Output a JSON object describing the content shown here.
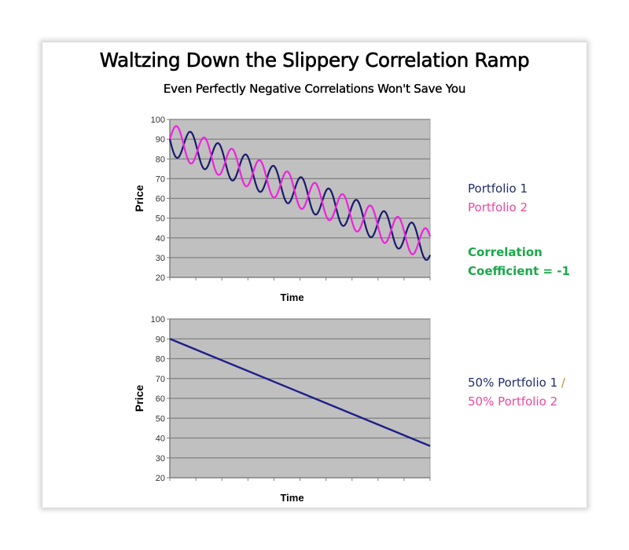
{
  "header": {
    "title": "Waltzing Down the Slippery Correlation Ramp",
    "subtitle": "Even Perfectly Negative Correlations Won't Save You"
  },
  "legends": {
    "top": {
      "series1": "Portfolio 1",
      "series2": "Portfolio 2",
      "note_line1": "Correlation",
      "note_line2": "Coefficient = -1"
    },
    "bottom": {
      "line1": "50% Portfolio 1",
      "separator": "/",
      "line2": "50% Portfolio 2"
    }
  },
  "colors": {
    "portfolio1": "#1a1a6e",
    "portfolio2": "#ee22dd",
    "combined": "#1e1e8a",
    "plot_bg": "#c0c0c0",
    "gridline": "#808080",
    "legend_navy": "#1f2d6b",
    "legend_pink": "#f0469c",
    "legend_green": "#1aa84a"
  },
  "chart_data": [
    {
      "type": "line",
      "title": "",
      "xlabel": "Time",
      "ylabel": "Price",
      "ylim": [
        20,
        100
      ],
      "yticks": [
        "20",
        "30",
        "40",
        "50",
        "60",
        "70",
        "80",
        "90",
        "100"
      ],
      "x_tick_count": 10,
      "grid": true,
      "legend": "right",
      "x_range": [
        0,
        1
      ],
      "series": [
        {
          "name": "Portfolio 1",
          "kind": "sine-on-trend",
          "trend_start": 90,
          "trend_end": 36,
          "amplitude": 8,
          "cycles": 9.4,
          "phase": "starts at trend, moves down"
        },
        {
          "name": "Portfolio 2",
          "kind": "sine-on-trend",
          "trend_start": 90,
          "trend_end": 36,
          "amplitude": 8,
          "cycles": 9.4,
          "phase": "starts at trend, moves up"
        }
      ],
      "annotation": "Correlation Coefficient = -1"
    },
    {
      "type": "line",
      "title": "",
      "xlabel": "Time",
      "ylabel": "Price",
      "ylim": [
        20,
        100
      ],
      "yticks": [
        "20",
        "30",
        "40",
        "50",
        "60",
        "70",
        "80",
        "90",
        "100"
      ],
      "x_tick_count": 10,
      "grid": true,
      "legend": "right",
      "series": [
        {
          "name": "50% Portfolio 1 / 50% Portfolio 2",
          "x": [
            0,
            1
          ],
          "y": [
            90,
            36
          ]
        }
      ]
    }
  ]
}
